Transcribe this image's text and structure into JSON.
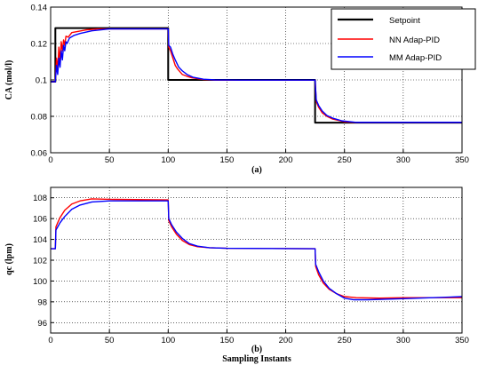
{
  "chart_data": [
    {
      "type": "line",
      "panel_label": "(a)",
      "xlabel": "",
      "ylabel": "CA (mol/l)",
      "xlim": [
        0,
        350
      ],
      "ylim": [
        0.06,
        0.14
      ],
      "xticks": [
        0,
        50,
        100,
        150,
        200,
        250,
        300,
        350
      ],
      "yticks": [
        0.06,
        0.08,
        0.1,
        0.12,
        0.14
      ],
      "ytick_labels": [
        "0.06",
        "0.08",
        "0.1",
        "0.12",
        "0.14"
      ],
      "grid": true,
      "legend": {
        "position": "top-right"
      },
      "series": [
        {
          "name": "Setpoint",
          "color": "#000000",
          "points": [
            [
              0,
              0.099
            ],
            [
              4,
              0.099
            ],
            [
              4,
              0.1285
            ],
            [
              100,
              0.1285
            ],
            [
              100,
              0.1
            ],
            [
              225,
              0.1
            ],
            [
              225,
              0.0765
            ],
            [
              350,
              0.0765
            ]
          ]
        },
        {
          "name": "NN Adap-PID",
          "color": "#ff0000",
          "points": [
            [
              0,
              0.099
            ],
            [
              4,
              0.099
            ],
            [
              5,
              0.112
            ],
            [
              6,
              0.106
            ],
            [
              7,
              0.118
            ],
            [
              8,
              0.11
            ],
            [
              9,
              0.121
            ],
            [
              10,
              0.116
            ],
            [
              11,
              0.122
            ],
            [
              12,
              0.119
            ],
            [
              13,
              0.124
            ],
            [
              15,
              0.1235
            ],
            [
              18,
              0.126
            ],
            [
              22,
              0.1265
            ],
            [
              30,
              0.1275
            ],
            [
              40,
              0.128
            ],
            [
              60,
              0.128
            ],
            [
              100,
              0.128
            ],
            [
              100.5,
              0.118
            ],
            [
              102,
              0.116
            ],
            [
              104,
              0.112
            ],
            [
              106,
              0.108
            ],
            [
              108,
              0.106
            ],
            [
              112,
              0.103
            ],
            [
              116,
              0.102
            ],
            [
              120,
              0.1012
            ],
            [
              130,
              0.1002
            ],
            [
              140,
              0.0999
            ],
            [
              160,
              0.0999
            ],
            [
              225,
              0.0999
            ],
            [
              226,
              0.088
            ],
            [
              228,
              0.085
            ],
            [
              231,
              0.082
            ],
            [
              235,
              0.08
            ],
            [
              240,
              0.0785
            ],
            [
              250,
              0.077
            ],
            [
              260,
              0.0766
            ],
            [
              350,
              0.0766
            ]
          ]
        },
        {
          "name": "MM Adap-PID",
          "color": "#0000ff",
          "points": [
            [
              0,
              0.099
            ],
            [
              4,
              0.099
            ],
            [
              5,
              0.108
            ],
            [
              6,
              0.103
            ],
            [
              7,
              0.112
            ],
            [
              8,
              0.107
            ],
            [
              9,
              0.116
            ],
            [
              10,
              0.111
            ],
            [
              11,
              0.119
            ],
            [
              12,
              0.116
            ],
            [
              13,
              0.121
            ],
            [
              14,
              0.12
            ],
            [
              16,
              0.123
            ],
            [
              20,
              0.1245
            ],
            [
              25,
              0.1255
            ],
            [
              35,
              0.127
            ],
            [
              50,
              0.128
            ],
            [
              100,
              0.128
            ],
            [
              100.5,
              0.119
            ],
            [
              102,
              0.118
            ],
            [
              104,
              0.114
            ],
            [
              106,
              0.111
            ],
            [
              109,
              0.107
            ],
            [
              112,
              0.105
            ],
            [
              116,
              0.103
            ],
            [
              121,
              0.1015
            ],
            [
              130,
              0.1004
            ],
            [
              140,
              0.1
            ],
            [
              160,
              0.0999
            ],
            [
              225,
              0.0999
            ],
            [
              226,
              0.089
            ],
            [
              228,
              0.086
            ],
            [
              231,
              0.083
            ],
            [
              235,
              0.0805
            ],
            [
              240,
              0.079
            ],
            [
              248,
              0.0775
            ],
            [
              260,
              0.0767
            ],
            [
              350,
              0.0767
            ]
          ]
        }
      ]
    },
    {
      "type": "line",
      "panel_label": "(b)",
      "xlabel": "Sampling Instants",
      "ylabel": "qc (lpm)",
      "xlim": [
        0,
        350
      ],
      "ylim": [
        95,
        109
      ],
      "xticks": [
        0,
        50,
        100,
        150,
        200,
        250,
        300,
        350
      ],
      "yticks": [
        96,
        98,
        100,
        102,
        104,
        106,
        108
      ],
      "ytick_labels": [
        "96",
        "98",
        "100",
        "102",
        "104",
        "106",
        "108"
      ],
      "grid": true,
      "series": [
        {
          "name": "NN Adap-PID",
          "color": "#ff0000",
          "points": [
            [
              0,
              103.1
            ],
            [
              4,
              103.1
            ],
            [
              4.5,
              105.2
            ],
            [
              6,
              105.6
            ],
            [
              8,
              106.1
            ],
            [
              12,
              106.8
            ],
            [
              18,
              107.4
            ],
            [
              25,
              107.7
            ],
            [
              35,
              107.9
            ],
            [
              50,
              107.85
            ],
            [
              100,
              107.8
            ],
            [
              100.5,
              105.8
            ],
            [
              103,
              105.2
            ],
            [
              107,
              104.5
            ],
            [
              112,
              103.9
            ],
            [
              118,
              103.5
            ],
            [
              125,
              103.3
            ],
            [
              135,
              103.2
            ],
            [
              150,
              103.15
            ],
            [
              225,
              103.1
            ],
            [
              225.5,
              101.4
            ],
            [
              228,
              100.6
            ],
            [
              232,
              99.8
            ],
            [
              237,
              99.2
            ],
            [
              243,
              98.8
            ],
            [
              250,
              98.5
            ],
            [
              260,
              98.4
            ],
            [
              280,
              98.35
            ],
            [
              300,
              98.4
            ],
            [
              350,
              98.4
            ]
          ]
        },
        {
          "name": "MM Adap-PID",
          "color": "#0000ff",
          "points": [
            [
              0,
              103.1
            ],
            [
              4,
              103.1
            ],
            [
              4.5,
              104.9
            ],
            [
              6,
              105.2
            ],
            [
              8,
              105.6
            ],
            [
              12,
              106.2
            ],
            [
              18,
              106.9
            ],
            [
              25,
              107.3
            ],
            [
              35,
              107.6
            ],
            [
              50,
              107.7
            ],
            [
              100,
              107.7
            ],
            [
              100.5,
              106.0
            ],
            [
              103,
              105.4
            ],
            [
              107,
              104.7
            ],
            [
              112,
              104.1
            ],
            [
              118,
              103.6
            ],
            [
              125,
              103.35
            ],
            [
              135,
              103.2
            ],
            [
              150,
              103.15
            ],
            [
              225,
              103.1
            ],
            [
              225.5,
              101.6
            ],
            [
              228,
              100.9
            ],
            [
              232,
              100.0
            ],
            [
              237,
              99.3
            ],
            [
              243,
              98.8
            ],
            [
              250,
              98.35
            ],
            [
              258,
              98.2
            ],
            [
              270,
              98.2
            ],
            [
              300,
              98.3
            ],
            [
              350,
              98.5
            ]
          ]
        }
      ]
    }
  ]
}
